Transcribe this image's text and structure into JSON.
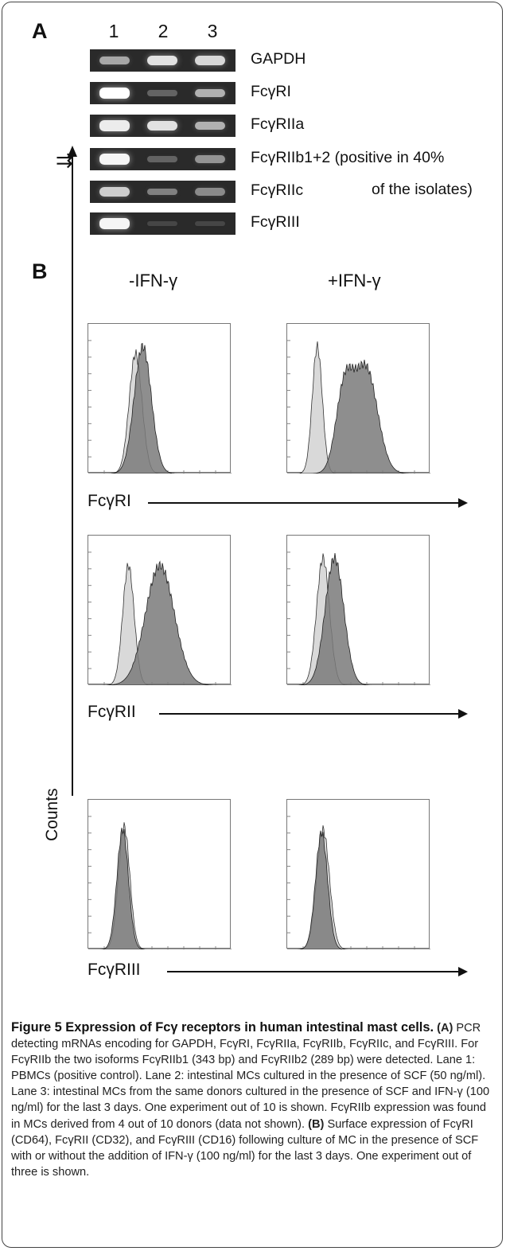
{
  "panel_a": {
    "label": "A",
    "lanes": [
      "1",
      "2",
      "3"
    ],
    "genes": [
      "GAPDH",
      "FcγRI",
      "FcγRIIa",
      "FcγRIIb1+2 (positive in 40%",
      "FcγRIIc",
      "FcγRIII"
    ],
    "note_line2": "of the isolates)",
    "arrow_glyph": "⇉",
    "band_intensities": [
      [
        0.55,
        0.85,
        0.8
      ],
      [
        1.0,
        0.2,
        0.6
      ],
      [
        0.9,
        0.85,
        0.6
      ],
      [
        0.95,
        0.2,
        0.45
      ],
      [
        0.75,
        0.35,
        0.4
      ],
      [
        0.95,
        0.05,
        0.05
      ]
    ]
  },
  "panel_b": {
    "label": "B",
    "col_headers": [
      "-IFN-γ",
      "+IFN-γ"
    ],
    "row_labels": [
      "FcγRI",
      "FcγRII",
      "FcγRIII"
    ],
    "y_label": "Counts"
  },
  "caption": {
    "title": "Figure 5 Expression of Fcγ receptors in human intestinal mast cells.",
    "seg1_bold": "(A)",
    "seg1": " PCR detecting mRNAs encoding for GAPDH, FcγRI, FcγRIIa, FcγRIIb, FcγRIIc, and FcγRIII. For FcγRIIb the two isoforms FcγRIIb1 (343 bp) and FcγRIIb2 (289 bp) were detected. Lane 1: PBMCs (positive control). Lane 2: intestinal MCs cultured in the presence of SCF (50 ng/ml). Lane 3: intestinal MCs from the same donors cultured in the presence of SCF and IFN-γ (100 ng/ml) for the last 3 days. One experiment out of 10 is shown. FcγRIIb expression was found in MCs derived from 4 out of 10 donors (data not shown). ",
    "seg2_bold": "(B)",
    "seg2": " Surface expression of FcγRI (CD64), FcγRII (CD32), and FcγRIII (CD16) following culture of MC in the presence of SCF with or without the addition of IFN-γ (100 ng/ml) for the last 3 days. One experiment out of three is shown."
  },
  "histograms": [
    {
      "row": 0,
      "col": 0,
      "control": {
        "mu": 0.33,
        "sd": 0.045,
        "h": 0.8
      },
      "stained": [
        {
          "mu": 0.38,
          "sd": 0.06,
          "h": 0.85
        }
      ]
    },
    {
      "row": 0,
      "col": 1,
      "control": {
        "mu": 0.21,
        "sd": 0.035,
        "h": 0.85
      },
      "stained": [
        {
          "mu": 0.4,
          "sd": 0.06,
          "h": 0.55
        },
        {
          "mu": 0.55,
          "sd": 0.08,
          "h": 0.7
        }
      ]
    },
    {
      "row": 1,
      "col": 0,
      "control": {
        "mu": 0.28,
        "sd": 0.04,
        "h": 0.8
      },
      "stained": [
        {
          "mu": 0.5,
          "sd": 0.1,
          "h": 0.8
        }
      ]
    },
    {
      "row": 1,
      "col": 1,
      "control": {
        "mu": 0.25,
        "sd": 0.045,
        "h": 0.85
      },
      "stained": [
        {
          "mu": 0.33,
          "sd": 0.065,
          "h": 0.85
        }
      ]
    },
    {
      "row": 2,
      "col": 0,
      "control": {
        "mu": 0.25,
        "sd": 0.04,
        "h": 0.82
      },
      "stained": [
        {
          "mu": 0.24,
          "sd": 0.04,
          "h": 0.8
        }
      ]
    },
    {
      "row": 2,
      "col": 1,
      "control": {
        "mu": 0.25,
        "sd": 0.045,
        "h": 0.8
      },
      "stained": [
        {
          "mu": 0.24,
          "sd": 0.042,
          "h": 0.78
        }
      ]
    }
  ]
}
